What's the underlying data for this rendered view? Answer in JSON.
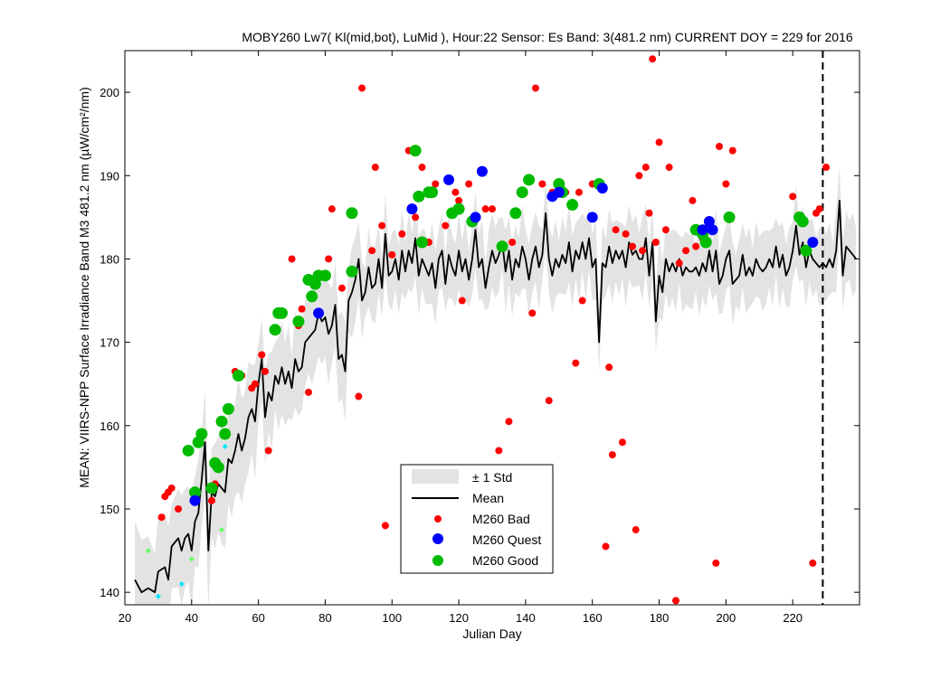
{
  "chart_data": {
    "type": "line",
    "title": "MOBY260   Lw7( Kl(mid,bot), LuMid ),   Hour:22 Sensor: Es Band: 3(481.2 nm)   CURRENT DOY = 229 for 2016",
    "xlabel": "Julian Day",
    "ylabel": "MEAN: VIIRS-NPP Surface Irradiance Band M3 481.2 nm (µW/cm²/nm)",
    "xlim": [
      20,
      240
    ],
    "ylim": [
      138.5,
      205
    ],
    "xticks": [
      20,
      40,
      60,
      80,
      100,
      120,
      140,
      160,
      180,
      200,
      220
    ],
    "yticks": [
      140,
      150,
      160,
      170,
      180,
      190,
      200
    ],
    "grid": false,
    "legend_position": "lower-center",
    "current_doy": 229,
    "colors": {
      "std_band": "#e3e3e3",
      "mean": "#000000",
      "bad": "#ff0000",
      "quest": "#0000ff",
      "good": "#00bb00",
      "extra_cyan": "#00e5ff",
      "extra_lightgreen": "#66ff66"
    },
    "legend": [
      {
        "label": "± 1 Std",
        "kind": "band"
      },
      {
        "label": "Mean",
        "kind": "line"
      },
      {
        "label": "M260 Bad",
        "kind": "bad"
      },
      {
        "label": "M260 Quest",
        "kind": "quest"
      },
      {
        "label": "M260 Good",
        "kind": "good"
      }
    ],
    "mean_series": {
      "name": "Mean",
      "points": [
        [
          23,
          141.5
        ],
        [
          25,
          140
        ],
        [
          27,
          140.5
        ],
        [
          29,
          140
        ],
        [
          30,
          142.5
        ],
        [
          32,
          143
        ],
        [
          33,
          141.5
        ],
        [
          34,
          145.5
        ],
        [
          36,
          146.5
        ],
        [
          37,
          145
        ],
        [
          38,
          146.5
        ],
        [
          39,
          147
        ],
        [
          40,
          145
        ],
        [
          41,
          148.5
        ],
        [
          42,
          149.5
        ],
        [
          43,
          153.5
        ],
        [
          44,
          158
        ],
        [
          45,
          145
        ],
        [
          46,
          152
        ],
        [
          47,
          151.5
        ],
        [
          48,
          153
        ],
        [
          49,
          152.5
        ],
        [
          50,
          152
        ],
        [
          51,
          156
        ],
        [
          52,
          155.5
        ],
        [
          53,
          157
        ],
        [
          54,
          159
        ],
        [
          55,
          157
        ],
        [
          56,
          158.5
        ],
        [
          57,
          161
        ],
        [
          58,
          162
        ],
        [
          59,
          160.5
        ],
        [
          60,
          165
        ],
        [
          61,
          168
        ],
        [
          62,
          161
        ],
        [
          63,
          164
        ],
        [
          64,
          163
        ],
        [
          65,
          166
        ],
        [
          66,
          165
        ],
        [
          67,
          167
        ],
        [
          68,
          165
        ],
        [
          69,
          166.5
        ],
        [
          70,
          164.5
        ],
        [
          71,
          168
        ],
        [
          72,
          166.5
        ],
        [
          73,
          167
        ],
        [
          74,
          170
        ],
        [
          75,
          170.5
        ],
        [
          76,
          171
        ],
        [
          77,
          171.5
        ],
        [
          78,
          173.5
        ],
        [
          79,
          172.5
        ],
        [
          80,
          173
        ],
        [
          81,
          171
        ],
        [
          82,
          172
        ],
        [
          83,
          174.5
        ],
        [
          84,
          168
        ],
        [
          85,
          168.5
        ],
        [
          86,
          166.5
        ],
        [
          87,
          175
        ],
        [
          88,
          176
        ],
        [
          89,
          177.5
        ],
        [
          90,
          180
        ],
        [
          91,
          175
        ],
        [
          92,
          176
        ],
        [
          93,
          179
        ],
        [
          94,
          176.5
        ],
        [
          95,
          177
        ],
        [
          96,
          180
        ],
        [
          97,
          176.5
        ],
        [
          98,
          183
        ],
        [
          99,
          178
        ],
        [
          100,
          178.5
        ],
        [
          101,
          180
        ],
        [
          102,
          177.5
        ],
        [
          103,
          181
        ],
        [
          104,
          178.5
        ],
        [
          105,
          181
        ],
        [
          106,
          179.5
        ],
        [
          107,
          182.5
        ],
        [
          108,
          178
        ],
        [
          109,
          180
        ],
        [
          110,
          179
        ],
        [
          111,
          178
        ],
        [
          112,
          179.5
        ],
        [
          113,
          176.5
        ],
        [
          114,
          180
        ],
        [
          115,
          181
        ],
        [
          116,
          177
        ],
        [
          117,
          180.5
        ],
        [
          118,
          179
        ],
        [
          119,
          178
        ],
        [
          120,
          181
        ],
        [
          121,
          178.5
        ],
        [
          122,
          180
        ],
        [
          123,
          177.5
        ],
        [
          124,
          180
        ],
        [
          125,
          183.5
        ],
        [
          126,
          179
        ],
        [
          127,
          180
        ],
        [
          128,
          176.5
        ],
        [
          129,
          179
        ],
        [
          130,
          181
        ],
        [
          131,
          179.5
        ],
        [
          132,
          180.5
        ],
        [
          133,
          182
        ],
        [
          134,
          178.5
        ],
        [
          135,
          181
        ],
        [
          136,
          177.5
        ],
        [
          137,
          180
        ],
        [
          138,
          179
        ],
        [
          139,
          181.5
        ],
        [
          140,
          180
        ],
        [
          141,
          177.5
        ],
        [
          142,
          180
        ],
        [
          143,
          181.5
        ],
        [
          144,
          179
        ],
        [
          145,
          180.5
        ],
        [
          146,
          185.5
        ],
        [
          147,
          180
        ],
        [
          148,
          178
        ],
        [
          149,
          180
        ],
        [
          150,
          179
        ],
        [
          151,
          180.5
        ],
        [
          152,
          179.5
        ],
        [
          153,
          182
        ],
        [
          154,
          178.5
        ],
        [
          155,
          181
        ],
        [
          156,
          180
        ],
        [
          157,
          182
        ],
        [
          158,
          180
        ],
        [
          159,
          182.5
        ],
        [
          160,
          179
        ],
        [
          161,
          180
        ],
        [
          162,
          170
        ],
        [
          163,
          179.5
        ],
        [
          164,
          179
        ],
        [
          165,
          181.5
        ],
        [
          166,
          179.5
        ],
        [
          167,
          181
        ],
        [
          168,
          180
        ],
        [
          169,
          181
        ],
        [
          170,
          179
        ],
        [
          171,
          182
        ],
        [
          172,
          180.5
        ],
        [
          173,
          181
        ],
        [
          174,
          180
        ],
        [
          175,
          180
        ],
        [
          176,
          182.5
        ],
        [
          177,
          178
        ],
        [
          178,
          182
        ],
        [
          179,
          172.5
        ],
        [
          180,
          178
        ],
        [
          181,
          176
        ],
        [
          182,
          180
        ],
        [
          183,
          178.5
        ],
        [
          184,
          179.5
        ],
        [
          185,
          178.5
        ],
        [
          186,
          180
        ],
        [
          187,
          178
        ],
        [
          188,
          179
        ],
        [
          189,
          178.5
        ],
        [
          190,
          178.5
        ],
        [
          191,
          179
        ],
        [
          192,
          178
        ],
        [
          193,
          179.5
        ],
        [
          194,
          178.5
        ],
        [
          195,
          181
        ],
        [
          196,
          178.5
        ],
        [
          197,
          181
        ],
        [
          198,
          177
        ],
        [
          199,
          178
        ],
        [
          200,
          180
        ],
        [
          201,
          181
        ],
        [
          202,
          177
        ],
        [
          203,
          177.5
        ],
        [
          204,
          178
        ],
        [
          205,
          180.5
        ],
        [
          206,
          178
        ],
        [
          207,
          179
        ],
        [
          208,
          178
        ],
        [
          209,
          180
        ],
        [
          210,
          179
        ],
        [
          211,
          178.5
        ],
        [
          212,
          179
        ],
        [
          213,
          180
        ],
        [
          214,
          179
        ],
        [
          215,
          181.5
        ],
        [
          216,
          179
        ],
        [
          217,
          180.5
        ],
        [
          218,
          178
        ],
        [
          219,
          179
        ],
        [
          220,
          181
        ],
        [
          221,
          184
        ],
        [
          222,
          180.5
        ],
        [
          223,
          182
        ],
        [
          224,
          179
        ],
        [
          225,
          181
        ],
        [
          226,
          180
        ],
        [
          227,
          179.5
        ],
        [
          228,
          179
        ],
        [
          229,
          179.5
        ],
        [
          230,
          179
        ],
        [
          231,
          180
        ],
        [
          232,
          179
        ],
        [
          233,
          181
        ],
        [
          234,
          187
        ],
        [
          235,
          178
        ],
        [
          236,
          181.5
        ],
        [
          237,
          181
        ],
        [
          238,
          180.5
        ],
        [
          239,
          180
        ]
      ]
    },
    "bad_points": [
      [
        31,
        149
      ],
      [
        32,
        151.5
      ],
      [
        33,
        152
      ],
      [
        34,
        152.5
      ],
      [
        36,
        150
      ],
      [
        46,
        151
      ],
      [
        47,
        153
      ],
      [
        53,
        166.5
      ],
      [
        55,
        166
      ],
      [
        58,
        164.5
      ],
      [
        59,
        165
      ],
      [
        61,
        168.5
      ],
      [
        62,
        166.5
      ],
      [
        63,
        157
      ],
      [
        72,
        172
      ],
      [
        75,
        164
      ],
      [
        70,
        180
      ],
      [
        73,
        174
      ],
      [
        79,
        178
      ],
      [
        81,
        180
      ],
      [
        82,
        186
      ],
      [
        85,
        176.5
      ],
      [
        90,
        163.5
      ],
      [
        91,
        200.5
      ],
      [
        94,
        181
      ],
      [
        95,
        191
      ],
      [
        97,
        184
      ],
      [
        98,
        148
      ],
      [
        100,
        180.5
      ],
      [
        103,
        183
      ],
      [
        105,
        193
      ],
      [
        107,
        185
      ],
      [
        109,
        191
      ],
      [
        111,
        182
      ],
      [
        113,
        189
      ],
      [
        116,
        184
      ],
      [
        119,
        188
      ],
      [
        120,
        187
      ],
      [
        121,
        175
      ],
      [
        123,
        189
      ],
      [
        128,
        186
      ],
      [
        130,
        186
      ],
      [
        132,
        157
      ],
      [
        135,
        160.5
      ],
      [
        136,
        182
      ],
      [
        142,
        173.5
      ],
      [
        143,
        200.5
      ],
      [
        145,
        189
      ],
      [
        147,
        163
      ],
      [
        148,
        188
      ],
      [
        152,
        188
      ],
      [
        155,
        167.5
      ],
      [
        156,
        188
      ],
      [
        157,
        175
      ],
      [
        160,
        189
      ],
      [
        164,
        145.5
      ],
      [
        165,
        167
      ],
      [
        166,
        156.5
      ],
      [
        167,
        183.5
      ],
      [
        169,
        158
      ],
      [
        170,
        183
      ],
      [
        172,
        181.5
      ],
      [
        173,
        147.5
      ],
      [
        174,
        190
      ],
      [
        175,
        181
      ],
      [
        176,
        191
      ],
      [
        177,
        185.5
      ],
      [
        178,
        204
      ],
      [
        179,
        182
      ],
      [
        180,
        194
      ],
      [
        182,
        183.5
      ],
      [
        183,
        191
      ],
      [
        185,
        139
      ],
      [
        186,
        179.5
      ],
      [
        188,
        181
      ],
      [
        190,
        187
      ],
      [
        191,
        181.5
      ],
      [
        193,
        182.5
      ],
      [
        195,
        184
      ],
      [
        197,
        143.5
      ],
      [
        198,
        193.5
      ],
      [
        200,
        189
      ],
      [
        202,
        193
      ],
      [
        220,
        187.5
      ],
      [
        226,
        143.5
      ],
      [
        227,
        185.5
      ],
      [
        228,
        186
      ],
      [
        230,
        191
      ]
    ],
    "quest_points": [
      [
        41,
        151
      ],
      [
        78,
        173.5
      ],
      [
        106,
        186
      ],
      [
        117,
        189.5
      ],
      [
        125,
        185
      ],
      [
        127,
        190.5
      ],
      [
        148,
        187.5
      ],
      [
        150,
        188
      ],
      [
        160,
        185
      ],
      [
        163,
        188.5
      ],
      [
        193,
        183.5
      ],
      [
        195,
        184.5
      ],
      [
        196,
        183.5
      ],
      [
        226,
        182
      ]
    ],
    "good_points": [
      [
        39,
        157
      ],
      [
        41,
        152
      ],
      [
        42,
        158
      ],
      [
        43,
        159
      ],
      [
        46,
        152.5
      ],
      [
        47,
        155.5
      ],
      [
        48,
        155
      ],
      [
        49,
        160.5
      ],
      [
        50,
        159
      ],
      [
        51,
        162
      ],
      [
        54,
        166
      ],
      [
        65,
        171.5
      ],
      [
        66,
        173.5
      ],
      [
        67,
        173.5
      ],
      [
        72,
        172.5
      ],
      [
        75,
        177.5
      ],
      [
        76,
        175.5
      ],
      [
        77,
        177
      ],
      [
        78,
        178
      ],
      [
        80,
        178
      ],
      [
        88,
        178.5
      ],
      [
        88,
        185.5
      ],
      [
        107,
        193
      ],
      [
        108,
        187.5
      ],
      [
        109,
        182
      ],
      [
        111,
        188
      ],
      [
        112,
        188
      ],
      [
        118,
        185.5
      ],
      [
        120,
        186
      ],
      [
        124,
        184.5
      ],
      [
        133,
        181.5
      ],
      [
        137,
        185.5
      ],
      [
        139,
        188
      ],
      [
        141,
        189.5
      ],
      [
        150,
        189
      ],
      [
        151,
        188
      ],
      [
        154,
        186.5
      ],
      [
        162,
        189
      ],
      [
        191,
        183.5
      ],
      [
        193,
        183
      ],
      [
        194,
        182
      ],
      [
        201,
        185
      ],
      [
        222,
        185
      ],
      [
        223,
        184.5
      ],
      [
        224,
        181
      ]
    ],
    "extra_cyan_points": [
      [
        30,
        139.5
      ],
      [
        37,
        141
      ],
      [
        50,
        157.5
      ]
    ],
    "extra_lightgreen_points": [
      [
        27,
        145
      ],
      [
        40,
        144
      ],
      [
        49,
        147.5
      ]
    ]
  }
}
